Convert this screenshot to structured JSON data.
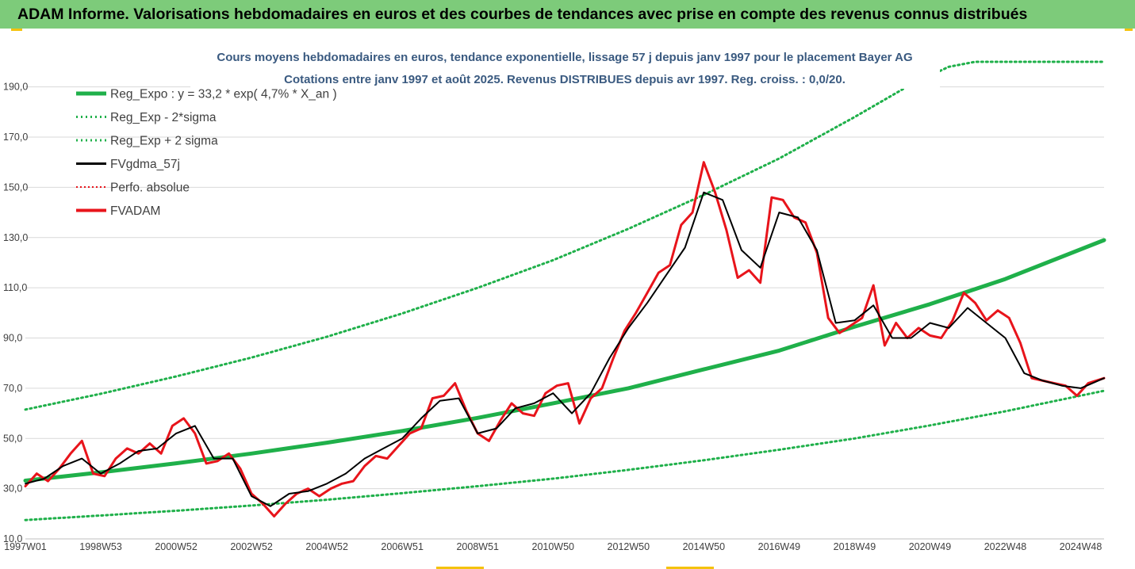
{
  "banner": {
    "title": "ADAM Informe. Valorisations hebdomadaires en euros et des courbes de tendances avec prise en compte des revenus connus distribués"
  },
  "colors": {
    "banner_bg": "#7dcb7a",
    "trend": "#1fb04a",
    "band": "#1fb04a",
    "smoothed": "#000000",
    "perf": "#e8141b",
    "price": "#e8141b",
    "title_text": "#3a5a80",
    "grid": "#d9d9d9"
  },
  "chart_data": {
    "type": "line",
    "title": "Cours moyens hebdomadaires en euros, tendance exponentielle, lissage 57 j depuis janv 1997 pour le placement Bayer AG",
    "subtitle": "Cotations entre janv 1997 et août 2025. Revenus DISTRIBUES depuis avr 1997. Reg. croiss. : 0,0/20.",
    "xlabel": "",
    "ylabel": "",
    "xlim": [
      1997.0,
      2025.62
    ],
    "ylim": [
      10,
      200
    ],
    "y_ticks": [
      "10,0",
      "30,0",
      "50,0",
      "70,0",
      "90,0",
      "110,0",
      "130,0",
      "150,0",
      "170,0",
      "190,0"
    ],
    "y_tick_values": [
      10,
      30,
      50,
      70,
      90,
      110,
      130,
      150,
      170,
      190
    ],
    "x_ticks": [
      "1997W01",
      "1998W53",
      "2000W52",
      "2002W52",
      "2004W52",
      "2006W51",
      "2008W51",
      "2010W50",
      "2012W50",
      "2014W50",
      "2016W49",
      "2018W49",
      "2020W49",
      "2022W48",
      "2024W48"
    ],
    "x_tick_values": [
      1997.0,
      1999.0,
      2001.0,
      2003.0,
      2005.0,
      2007.0,
      2009.0,
      2011.0,
      2013.0,
      2015.0,
      2017.0,
      2019.0,
      2021.0,
      2023.0,
      2025.0
    ],
    "grid": "horizontal",
    "legend_position": "top-left",
    "legend": [
      {
        "label": "Reg_Expo : y = 33,2 * exp( 4,7% *  X_an )",
        "style": "solid-thick",
        "color": "#1fb04a"
      },
      {
        "label": "Reg_Exp - 2*sigma",
        "style": "dotted",
        "color": "#1fb04a"
      },
      {
        "label": "Reg_Exp + 2 sigma",
        "style": "dotted",
        "color": "#1fb04a"
      },
      {
        "label": "FVgdma_57j",
        "style": "solid",
        "color": "#000000"
      },
      {
        "label": "Perfo. absolue",
        "style": "dotted-thin",
        "color": "#e8141b"
      },
      {
        "label": "FVADAM",
        "style": "solid-thick",
        "color": "#e8141b"
      }
    ],
    "series": [
      {
        "name": "Reg_Expo : y = 33,2 * exp( 4,7% *  X_an )",
        "x": [
          1997.0,
          1999.0,
          2001.0,
          2003.0,
          2005.0,
          2007.0,
          2009.0,
          2011.0,
          2013.0,
          2015.0,
          2017.0,
          2019.0,
          2021.0,
          2023.0,
          2025.62
        ],
        "values": [
          33.2,
          36.5,
          40.1,
          44.0,
          48.3,
          53.0,
          58.2,
          64.0,
          70.0,
          77.5,
          85.0,
          94.5,
          103.5,
          113.5,
          129.0
        ]
      },
      {
        "name": "Reg_Exp - 2*sigma",
        "x": [
          1997.0,
          1999.0,
          2001.0,
          2003.0,
          2005.0,
          2007.0,
          2009.0,
          2011.0,
          2013.0,
          2015.0,
          2017.0,
          2019.0,
          2021.0,
          2023.0,
          2025.62
        ],
        "values": [
          17.5,
          19.3,
          21.2,
          23.3,
          25.6,
          28.2,
          31.0,
          34.0,
          37.5,
          41.3,
          45.5,
          50.0,
          55.2,
          60.8,
          69.0
        ]
      },
      {
        "name": "Reg_Exp + 2 sigma",
        "x": [
          1997.0,
          1999.0,
          2001.0,
          2003.0,
          2005.0,
          2007.0,
          2009.0,
          2011.0,
          2013.0,
          2015.0,
          2017.0,
          2019.0,
          2020.5,
          2021.5,
          2022.2,
          2025.62
        ],
        "values": [
          61.5,
          67.8,
          74.7,
          82.2,
          90.5,
          99.8,
          110.0,
          121.0,
          133.5,
          147.0,
          161.5,
          178.0,
          191.0,
          198.0,
          200.0,
          200.0
        ]
      },
      {
        "name": "FVgdma_57j",
        "x": [
          1997.0,
          1997.5,
          1998.0,
          1998.5,
          1999.0,
          1999.5,
          2000.0,
          2000.5,
          2001.0,
          2001.5,
          2002.0,
          2002.5,
          2003.0,
          2003.5,
          2004.0,
          2004.5,
          2005.0,
          2005.5,
          2006.0,
          2006.5,
          2007.0,
          2007.5,
          2008.0,
          2008.5,
          2009.0,
          2009.5,
          2010.0,
          2010.5,
          2011.0,
          2011.5,
          2012.0,
          2012.5,
          2013.0,
          2013.5,
          2014.0,
          2014.5,
          2015.0,
          2015.5,
          2016.0,
          2016.5,
          2017.0,
          2017.5,
          2018.0,
          2018.5,
          2019.0,
          2019.5,
          2020.0,
          2020.5,
          2021.0,
          2021.5,
          2022.0,
          2022.5,
          2023.0,
          2023.5,
          2024.0,
          2024.5,
          2025.0,
          2025.62
        ],
        "values": [
          32,
          34,
          39,
          42,
          36,
          40,
          45,
          46,
          52,
          55,
          42,
          42,
          27,
          23,
          28,
          29,
          32,
          36,
          42,
          46,
          50,
          58,
          65,
          66,
          52,
          54,
          62,
          64,
          68,
          60,
          68,
          82,
          94,
          104,
          115,
          126,
          148,
          145,
          125,
          118,
          140,
          138,
          125,
          96,
          97,
          103,
          90,
          90,
          96,
          94,
          102,
          96,
          90,
          76,
          73,
          71,
          70,
          74
        ]
      },
      {
        "name": "FVADAM",
        "x": [
          1997.0,
          1997.3,
          1997.6,
          1997.9,
          1998.2,
          1998.5,
          1998.8,
          1999.1,
          1999.4,
          1999.7,
          2000.0,
          2000.3,
          2000.6,
          2000.9,
          2001.2,
          2001.5,
          2001.8,
          2002.1,
          2002.4,
          2002.7,
          2003.0,
          2003.3,
          2003.6,
          2003.9,
          2004.2,
          2004.5,
          2004.8,
          2005.1,
          2005.4,
          2005.7,
          2006.0,
          2006.3,
          2006.6,
          2006.9,
          2007.2,
          2007.5,
          2007.8,
          2008.1,
          2008.4,
          2008.7,
          2009.0,
          2009.3,
          2009.6,
          2009.9,
          2010.2,
          2010.5,
          2010.8,
          2011.1,
          2011.4,
          2011.7,
          2012.0,
          2012.3,
          2012.6,
          2012.9,
          2013.2,
          2013.5,
          2013.8,
          2014.1,
          2014.4,
          2014.7,
          2015.0,
          2015.3,
          2015.6,
          2015.9,
          2016.2,
          2016.5,
          2016.8,
          2017.1,
          2017.4,
          2017.7,
          2018.0,
          2018.3,
          2018.6,
          2018.9,
          2019.2,
          2019.5,
          2019.8,
          2020.1,
          2020.4,
          2020.7,
          2021.0,
          2021.3,
          2021.6,
          2021.9,
          2022.2,
          2022.5,
          2022.8,
          2023.1,
          2023.4,
          2023.7,
          2024.0,
          2024.3,
          2024.6,
          2024.9,
          2025.2,
          2025.62
        ],
        "values": [
          31,
          36,
          33,
          38,
          44,
          49,
          36,
          35,
          42,
          46,
          44,
          48,
          44,
          55,
          58,
          52,
          40,
          41,
          44,
          38,
          28,
          24,
          19,
          24,
          28,
          30,
          27,
          30,
          32,
          33,
          39,
          43,
          42,
          47,
          52,
          54,
          66,
          67,
          72,
          61,
          52,
          49,
          57,
          64,
          60,
          59,
          68,
          71,
          72,
          56,
          66,
          70,
          82,
          93,
          100,
          108,
          116,
          119,
          135,
          140,
          160,
          148,
          133,
          114,
          117,
          112,
          146,
          145,
          138,
          136,
          124,
          98,
          92,
          95,
          98,
          111,
          87,
          96,
          90,
          94,
          91,
          90,
          97,
          108,
          104,
          97,
          101,
          98,
          88,
          74,
          73,
          72,
          71,
          67,
          72,
          74
        ]
      }
    ]
  }
}
